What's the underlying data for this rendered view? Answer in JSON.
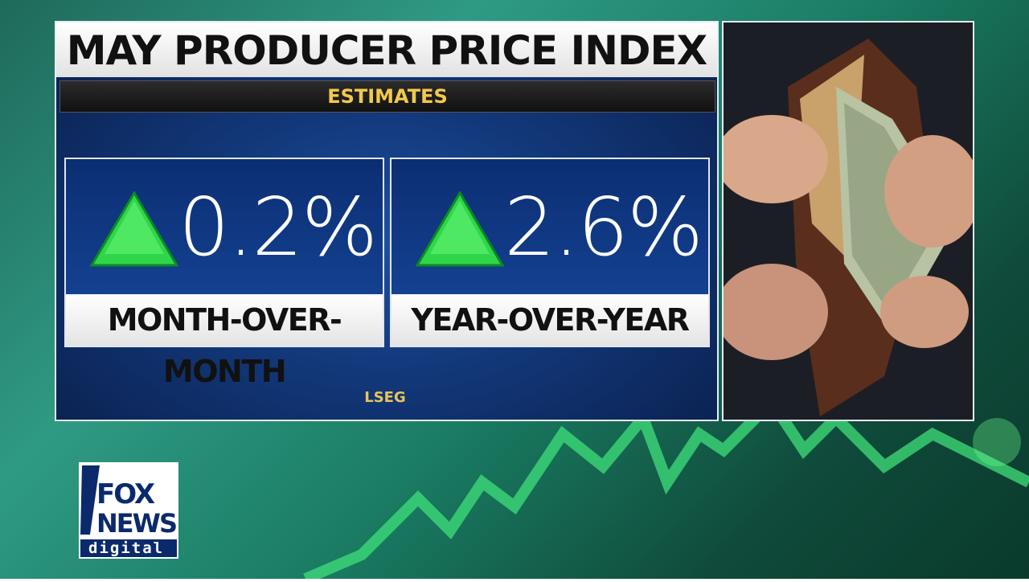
{
  "header": {
    "title": "MAY PRODUCER PRICE INDEX",
    "subtitle": "ESTIMATES"
  },
  "cards": [
    {
      "value": "0.2%",
      "label": "MONTH-OVER-MONTH"
    },
    {
      "value": "2.6%",
      "label": "YEAR-OVER-YEAR"
    }
  ],
  "source": "LSEG",
  "logo": {
    "line1": "FOX",
    "line2": "NEWS",
    "line3": "digital"
  }
}
